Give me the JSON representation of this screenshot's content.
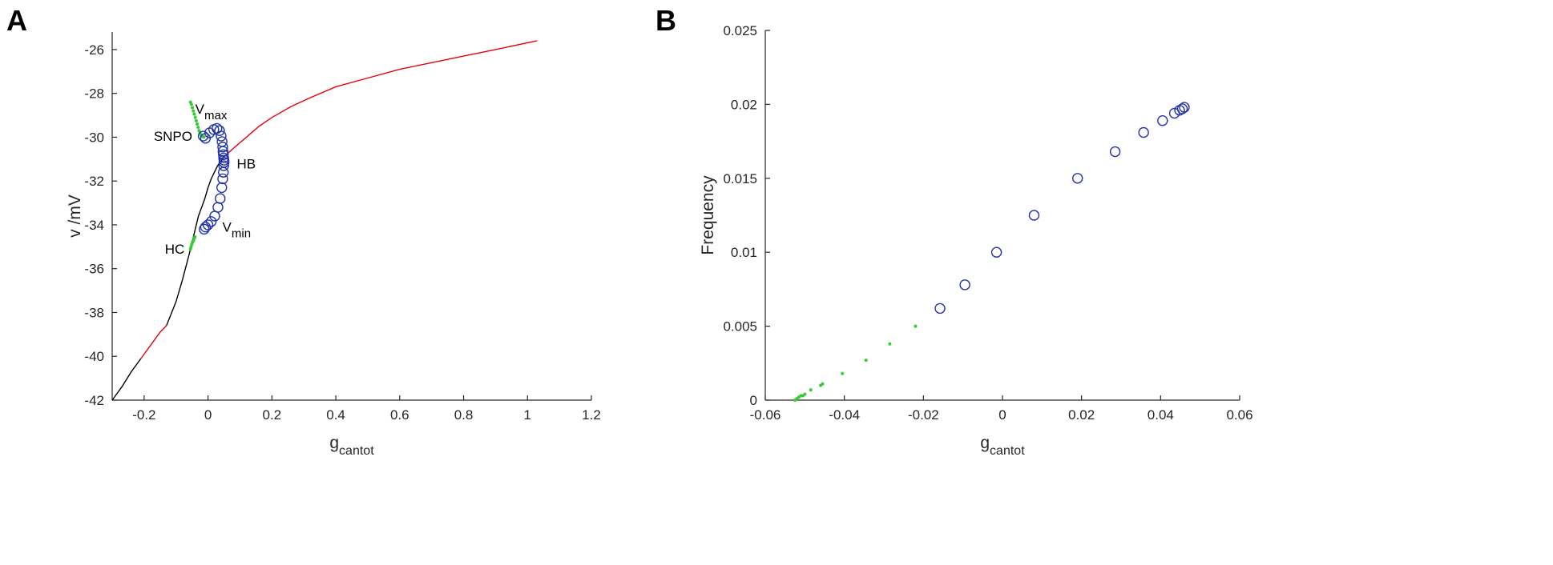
{
  "colors": {
    "stable": "#e8000b",
    "unstable": "#000000",
    "periodic_unstable": "#2233aa",
    "periodic_stable": "#33cc33",
    "axis": "#262626"
  },
  "chart_data": [
    {
      "type": "line",
      "panel_label": "A",
      "xlabel": "g",
      "xlabel_sub": "cantot",
      "ylabel": "v /mV",
      "xlim": [
        -0.3,
        1.2
      ],
      "ylim": [
        -42,
        -25.2
      ],
      "xticks": [
        -0.2,
        0,
        0.2,
        0.4,
        0.6,
        0.8,
        1,
        1.2
      ],
      "xtick_labels": [
        "-0.2",
        "0",
        "0.2",
        "0.4",
        "0.6",
        "0.8",
        "1",
        "1.2"
      ],
      "yticks": [
        -42,
        -40,
        -38,
        -36,
        -34,
        -32,
        -30,
        -28,
        -26
      ],
      "ytick_labels": [
        "-42",
        "-40",
        "-38",
        "-36",
        "-34",
        "-32",
        "-30",
        "-28",
        "-26"
      ],
      "series": [
        {
          "style": "line",
          "color": "unstable",
          "x": [
            -0.3,
            -0.27,
            -0.24,
            -0.21
          ],
          "y": [
            -42.0,
            -41.4,
            -40.7,
            -40.1
          ]
        },
        {
          "style": "line",
          "color": "stable",
          "x": [
            -0.21,
            -0.18,
            -0.15,
            -0.13
          ],
          "y": [
            -40.1,
            -39.5,
            -38.9,
            -38.6
          ]
        },
        {
          "style": "line",
          "color": "unstable",
          "x": [
            -0.13,
            -0.1,
            -0.08,
            -0.06,
            -0.05,
            -0.04,
            -0.03,
            -0.02,
            -0.01,
            0.0,
            0.01,
            0.02,
            0.03,
            0.04,
            0.05
          ],
          "y": [
            -38.6,
            -37.5,
            -36.5,
            -35.4,
            -34.8,
            -34.2,
            -33.6,
            -33.2,
            -32.8,
            -32.3,
            -31.9,
            -31.6,
            -31.3,
            -31.1,
            -30.9
          ]
        },
        {
          "style": "line",
          "color": "stable",
          "x": [
            0.05,
            0.08,
            0.12,
            0.16,
            0.2,
            0.26,
            0.32,
            0.4,
            0.5,
            0.6,
            0.7,
            0.8,
            0.9,
            1.03
          ],
          "y": [
            -30.9,
            -30.5,
            -30.0,
            -29.5,
            -29.1,
            -28.6,
            -28.2,
            -27.7,
            -27.3,
            -26.9,
            -26.6,
            -26.3,
            -26.0,
            -25.6
          ]
        },
        {
          "style": "points",
          "marker": "dot",
          "color": "periodic_stable",
          "x": [
            -0.055,
            -0.052,
            -0.049,
            -0.046,
            -0.043,
            -0.04,
            -0.037,
            -0.034,
            -0.031,
            -0.028,
            -0.025,
            -0.022,
            -0.019,
            -0.016,
            -0.013
          ],
          "y": [
            -28.4,
            -28.5,
            -28.65,
            -28.8,
            -28.95,
            -29.1,
            -29.25,
            -29.4,
            -29.55,
            -29.7,
            -29.8,
            -29.9,
            -29.95,
            -29.98,
            -30.0
          ]
        },
        {
          "style": "points",
          "marker": "dot",
          "color": "periodic_stable",
          "x": [
            -0.055,
            -0.053,
            -0.051,
            -0.049,
            -0.047,
            -0.045,
            -0.043,
            -0.041
          ],
          "y": [
            -35.1,
            -35.0,
            -34.9,
            -34.8,
            -34.75,
            -34.7,
            -34.6,
            -34.55
          ]
        },
        {
          "style": "points",
          "marker": "circle",
          "color": "periodic_unstable",
          "x": [
            -0.015,
            -0.008,
            0.005,
            0.018,
            0.028,
            0.036,
            0.041,
            0.044,
            0.046,
            0.047,
            0.048,
            0.049,
            0.05,
            0.05
          ],
          "y": [
            -29.95,
            -30.05,
            -29.8,
            -29.65,
            -29.6,
            -29.7,
            -29.95,
            -30.2,
            -30.45,
            -30.65,
            -30.8,
            -30.95,
            -31.05,
            -31.15
          ]
        },
        {
          "style": "points",
          "marker": "circle",
          "color": "periodic_unstable",
          "x": [
            0.05,
            0.049,
            0.048,
            0.046,
            0.043,
            0.038,
            0.031,
            0.021,
            0.01,
            0.0,
            -0.008,
            -0.012
          ],
          "y": [
            -31.15,
            -31.3,
            -31.6,
            -31.9,
            -32.3,
            -32.8,
            -33.2,
            -33.6,
            -33.85,
            -34.0,
            -34.1,
            -34.2
          ]
        }
      ],
      "annotations": [
        {
          "text": "V",
          "sub": "max",
          "x": -0.04,
          "y": -28.7
        },
        {
          "text": "SNPO",
          "sub": "",
          "x": -0.17,
          "y": -29.95
        },
        {
          "text": "HB",
          "sub": "",
          "x": 0.09,
          "y": -31.2
        },
        {
          "text": "V",
          "sub": "min",
          "x": 0.045,
          "y": -34.1
        },
        {
          "text": "HC",
          "sub": "",
          "x": -0.135,
          "y": -35.1
        }
      ]
    },
    {
      "type": "scatter",
      "panel_label": "B",
      "xlabel": "g",
      "xlabel_sub": "cantot",
      "ylabel": "Frequency",
      "xlim": [
        -0.06,
        0.06
      ],
      "ylim": [
        0,
        0.025
      ],
      "xticks": [
        -0.06,
        -0.04,
        -0.02,
        0,
        0.02,
        0.04,
        0.06
      ],
      "xtick_labels": [
        "-0.06",
        "-0.04",
        "-0.02",
        "0",
        "0.02",
        "0.04",
        "0.06"
      ],
      "yticks": [
        0,
        0.005,
        0.01,
        0.015,
        0.02,
        0.025
      ],
      "ytick_labels": [
        "0",
        "0.005",
        "0.01",
        "0.015",
        "0.02",
        "0.025"
      ],
      "series": [
        {
          "style": "points",
          "marker": "dot",
          "color": "periodic_stable",
          "x": [
            -0.0525,
            -0.052,
            -0.0515,
            -0.051,
            -0.0505,
            -0.05,
            -0.0485,
            -0.046,
            -0.0455,
            -0.0405,
            -0.0345,
            -0.0285,
            -0.022
          ],
          "y": [
            0.0,
            0.0001,
            0.0002,
            0.0003,
            0.0003,
            0.0004,
            0.0007,
            0.001,
            0.0011,
            0.0018,
            0.0027,
            0.0038,
            0.005
          ]
        },
        {
          "style": "points",
          "marker": "circle",
          "color": "periodic_unstable",
          "x": [
            -0.0158,
            -0.0095,
            -0.0015,
            0.008,
            0.019,
            0.0285,
            0.0357,
            0.0405,
            0.0435,
            0.0448,
            0.0455,
            0.046
          ],
          "y": [
            0.0062,
            0.0078,
            0.01,
            0.0125,
            0.015,
            0.0168,
            0.0181,
            0.0189,
            0.0194,
            0.0196,
            0.0197,
            0.0198
          ]
        }
      ]
    }
  ]
}
